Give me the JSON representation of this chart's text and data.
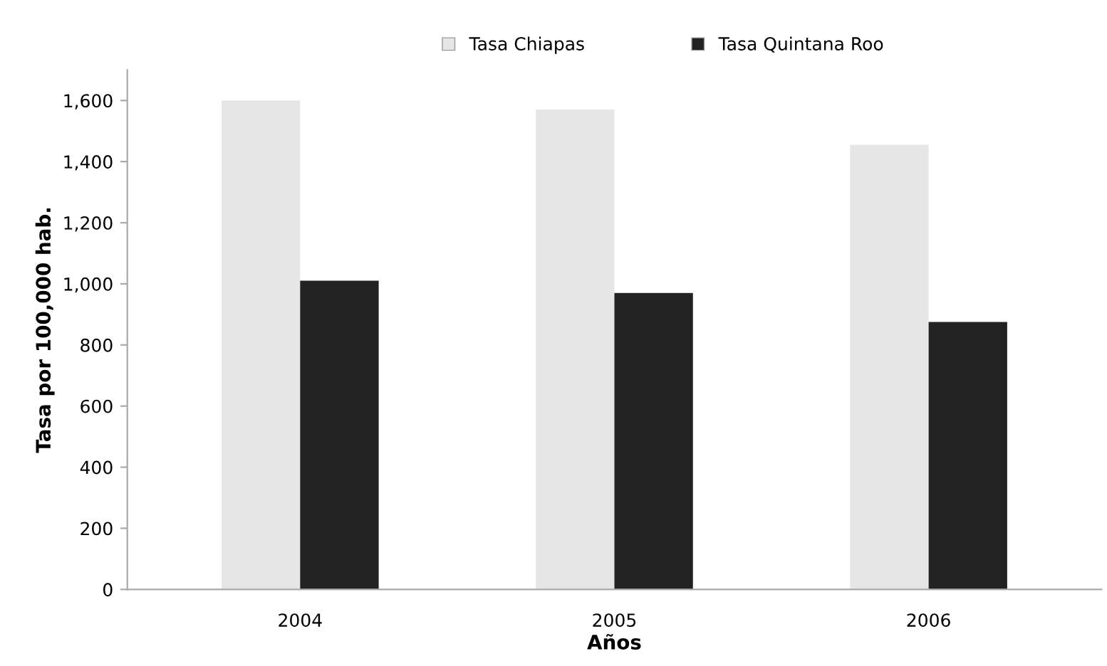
{
  "chart_data": {
    "type": "bar",
    "xlabel": "Años",
    "ylabel": "Tasa por 100,000 hab.",
    "categories": [
      "2004",
      "2005",
      "2006"
    ],
    "series": [
      {
        "name": "Tasa Chiapas",
        "color": "#e6e6e6",
        "values": [
          1600,
          1570,
          1455
        ]
      },
      {
        "name": "Tasa Quintana Roo",
        "color": "#222222",
        "values": [
          1010,
          970,
          875
        ]
      }
    ],
    "ylim": [
      0,
      1700
    ],
    "yticks": [
      0,
      200,
      400,
      600,
      800,
      {
        "value": 1000,
        "label": "1,000"
      },
      {
        "value": 1200,
        "label": "1,200"
      },
      {
        "value": 1400,
        "label": "1,400"
      },
      {
        "value": 1600,
        "label": "1,600"
      }
    ],
    "grid": false,
    "legend": "top"
  }
}
